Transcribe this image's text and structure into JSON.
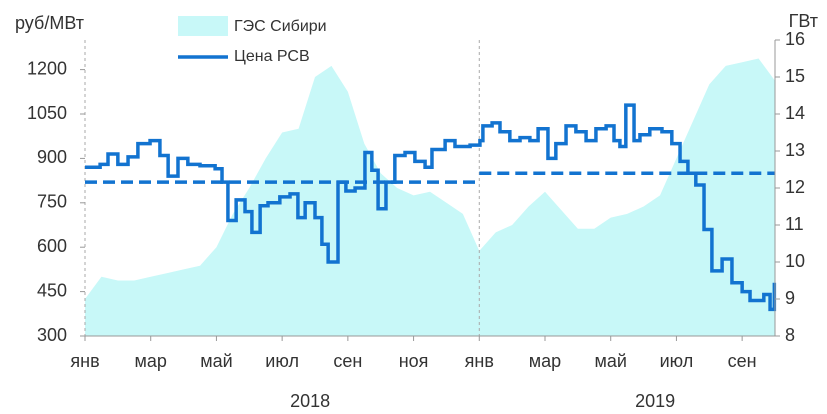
{
  "chart_data": {
    "type": "line",
    "y_label": "руб/МВт",
    "y2_label": "ГВт",
    "xlim": [
      0,
      21
    ],
    "xticks": [
      {
        "value": 0,
        "label": "янв"
      },
      {
        "value": 2,
        "label": "мар"
      },
      {
        "value": 4,
        "label": "май"
      },
      {
        "value": 6,
        "label": "июл"
      },
      {
        "value": 8,
        "label": "сен"
      },
      {
        "value": 10,
        "label": "ноя"
      },
      {
        "value": 12,
        "label": "янв"
      },
      {
        "value": 14,
        "label": "мар"
      },
      {
        "value": 16,
        "label": "май"
      },
      {
        "value": 18,
        "label": "июл"
      },
      {
        "value": 20,
        "label": "сен"
      }
    ],
    "ylim": [
      300,
      1300
    ],
    "yticks": [
      300,
      450,
      600,
      750,
      900,
      1050,
      1200
    ],
    "y2lim": [
      8,
      16
    ],
    "y2ticks": [
      8,
      9,
      10,
      11,
      12,
      13,
      14,
      15,
      16
    ],
    "years": [
      {
        "label": "2018",
        "start": 0,
        "end": 12,
        "average": 820
      },
      {
        "label": "2019",
        "start": 12,
        "end": 21,
        "average": 850
      }
    ],
    "series": [
      {
        "name": "ГЭС Сибири",
        "kind": "area",
        "axis": "y2",
        "color": "#c8f8f8",
        "x": [
          0,
          0.5,
          1,
          1.5,
          2,
          2.5,
          3,
          3.5,
          4,
          4.5,
          5,
          5.5,
          6,
          6.5,
          7,
          7.5,
          8,
          8.5,
          9,
          9.5,
          10,
          10.5,
          11,
          11.5,
          12,
          12.5,
          13,
          13.5,
          14,
          14.5,
          15,
          15.5,
          16,
          16.5,
          17,
          17.5,
          18,
          18.5,
          19,
          19.5,
          20,
          20.5,
          21
        ],
        "values": [
          9.0,
          9.6,
          9.5,
          9.5,
          9.6,
          9.7,
          9.8,
          9.9,
          10.4,
          11.3,
          12.0,
          12.8,
          13.5,
          13.6,
          15.0,
          15.3,
          14.6,
          13.2,
          12.4,
          12.0,
          11.8,
          11.9,
          11.6,
          11.3,
          10.3,
          10.8,
          11.0,
          11.5,
          11.9,
          11.4,
          10.9,
          10.9,
          11.2,
          11.3,
          11.5,
          11.8,
          12.8,
          13.8,
          14.8,
          15.3,
          15.4,
          15.5,
          14.9
        ]
      },
      {
        "name": "Цена РСВ",
        "kind": "step",
        "color": "#1273d0",
        "x": [
          0,
          0.46,
          0.7,
          1.0,
          1.31,
          1.61,
          1.98,
          2.28,
          2.53,
          2.83,
          3.13,
          3.5,
          3.96,
          4.17,
          4.35,
          4.6,
          4.87,
          5.08,
          5.33,
          5.57,
          5.93,
          6.24,
          6.48,
          6.7,
          7.0,
          7.21,
          7.4,
          7.7,
          7.94,
          8.22,
          8.52,
          8.73,
          8.92,
          9.16,
          9.43,
          9.74,
          10.04,
          10.35,
          10.56,
          10.96,
          11.26,
          11.72,
          12.02,
          12.11,
          12.39,
          12.63,
          12.93,
          13.24,
          13.54,
          13.79,
          14.09,
          14.33,
          14.64,
          14.94,
          15.25,
          15.55,
          15.86,
          16.1,
          16.28,
          16.46,
          16.71,
          16.89,
          17.19,
          17.56,
          17.86,
          18.11,
          18.35,
          18.59,
          18.84,
          19.08,
          19.39,
          19.69,
          20.0,
          20.24,
          20.48,
          20.66,
          20.85,
          20.98
        ],
        "values": [
          870,
          880,
          915,
          880,
          905,
          950,
          960,
          910,
          840,
          900,
          880,
          875,
          865,
          820,
          690,
          760,
          720,
          650,
          740,
          750,
          770,
          780,
          700,
          750,
          700,
          610,
          550,
          820,
          790,
          800,
          920,
          860,
          730,
          820,
          910,
          920,
          890,
          870,
          930,
          960,
          940,
          945,
          960,
          1010,
          1020,
          990,
          960,
          970,
          960,
          1000,
          900,
          950,
          1010,
          990,
          960,
          1000,
          1010,
          960,
          940,
          1080,
          960,
          980,
          1000,
          990,
          950,
          890,
          850,
          810,
          660,
          520,
          560,
          480,
          450,
          420,
          420,
          440,
          390,
          480
        ]
      }
    ]
  }
}
